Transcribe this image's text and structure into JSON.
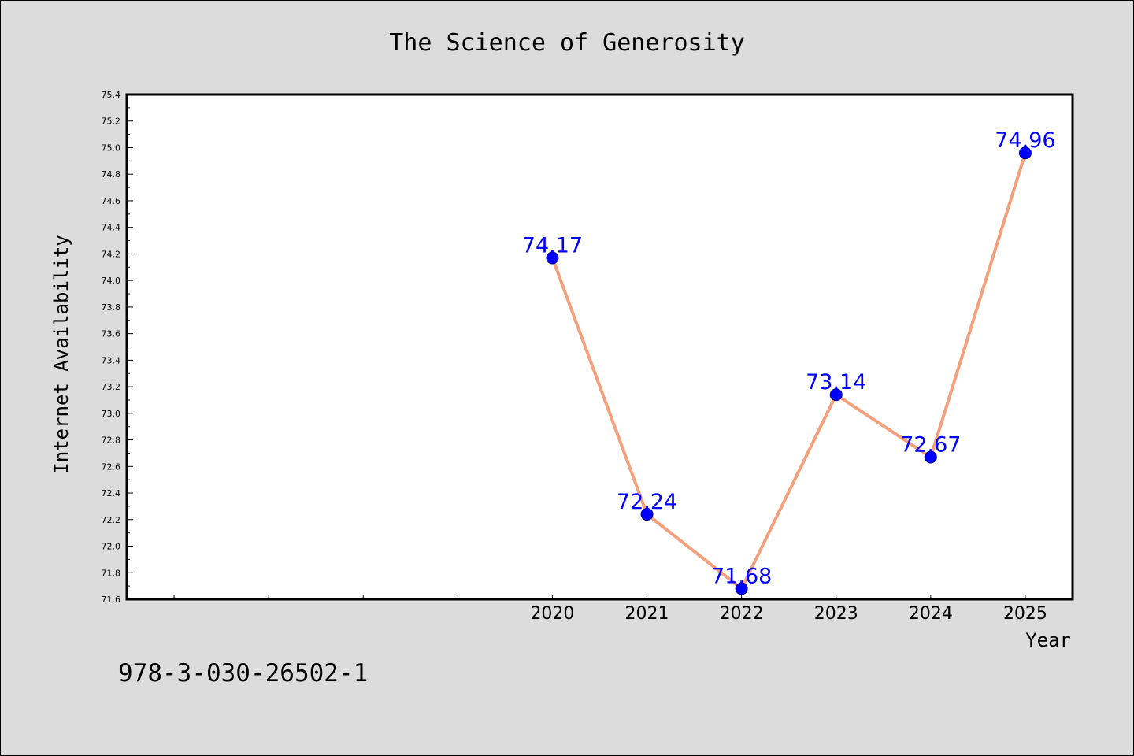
{
  "chart_data": {
    "type": "line",
    "title": "The Science of Generosity",
    "xlabel": "Year",
    "ylabel": "Internet Availability",
    "x": [
      2020,
      2021,
      2022,
      2023,
      2024,
      2025
    ],
    "xtick_labels": [
      "2020",
      "2021",
      "2022",
      "2023",
      "2024",
      "2025"
    ],
    "xlim": [
      2015.5,
      2025.5
    ],
    "series": [
      {
        "values": [
          74.17,
          72.24,
          71.68,
          73.14,
          72.67,
          74.96
        ],
        "data_labels": [
          "74.17",
          "72.24",
          "71.68",
          "73.14",
          "72.67",
          "74.96"
        ],
        "line_color": "#f4a07d",
        "marker_color": "#0000ff"
      }
    ],
    "ylim": [
      71.6,
      75.4
    ],
    "yticks": [
      "71.6",
      "71.8",
      "72.0",
      "72.2",
      "72.4",
      "72.6",
      "72.8",
      "73.0",
      "73.2",
      "73.4",
      "73.6",
      "73.8",
      "74.0",
      "74.2",
      "74.4",
      "74.6",
      "74.8",
      "75.0",
      "75.2",
      "75.4"
    ],
    "grid": false,
    "legend": false
  },
  "footer": {
    "isbn": "978-3-030-26502-1"
  },
  "colors": {
    "background": "#dcdcdc",
    "plot_background": "#ffffff",
    "data_label": "#0000ff"
  }
}
